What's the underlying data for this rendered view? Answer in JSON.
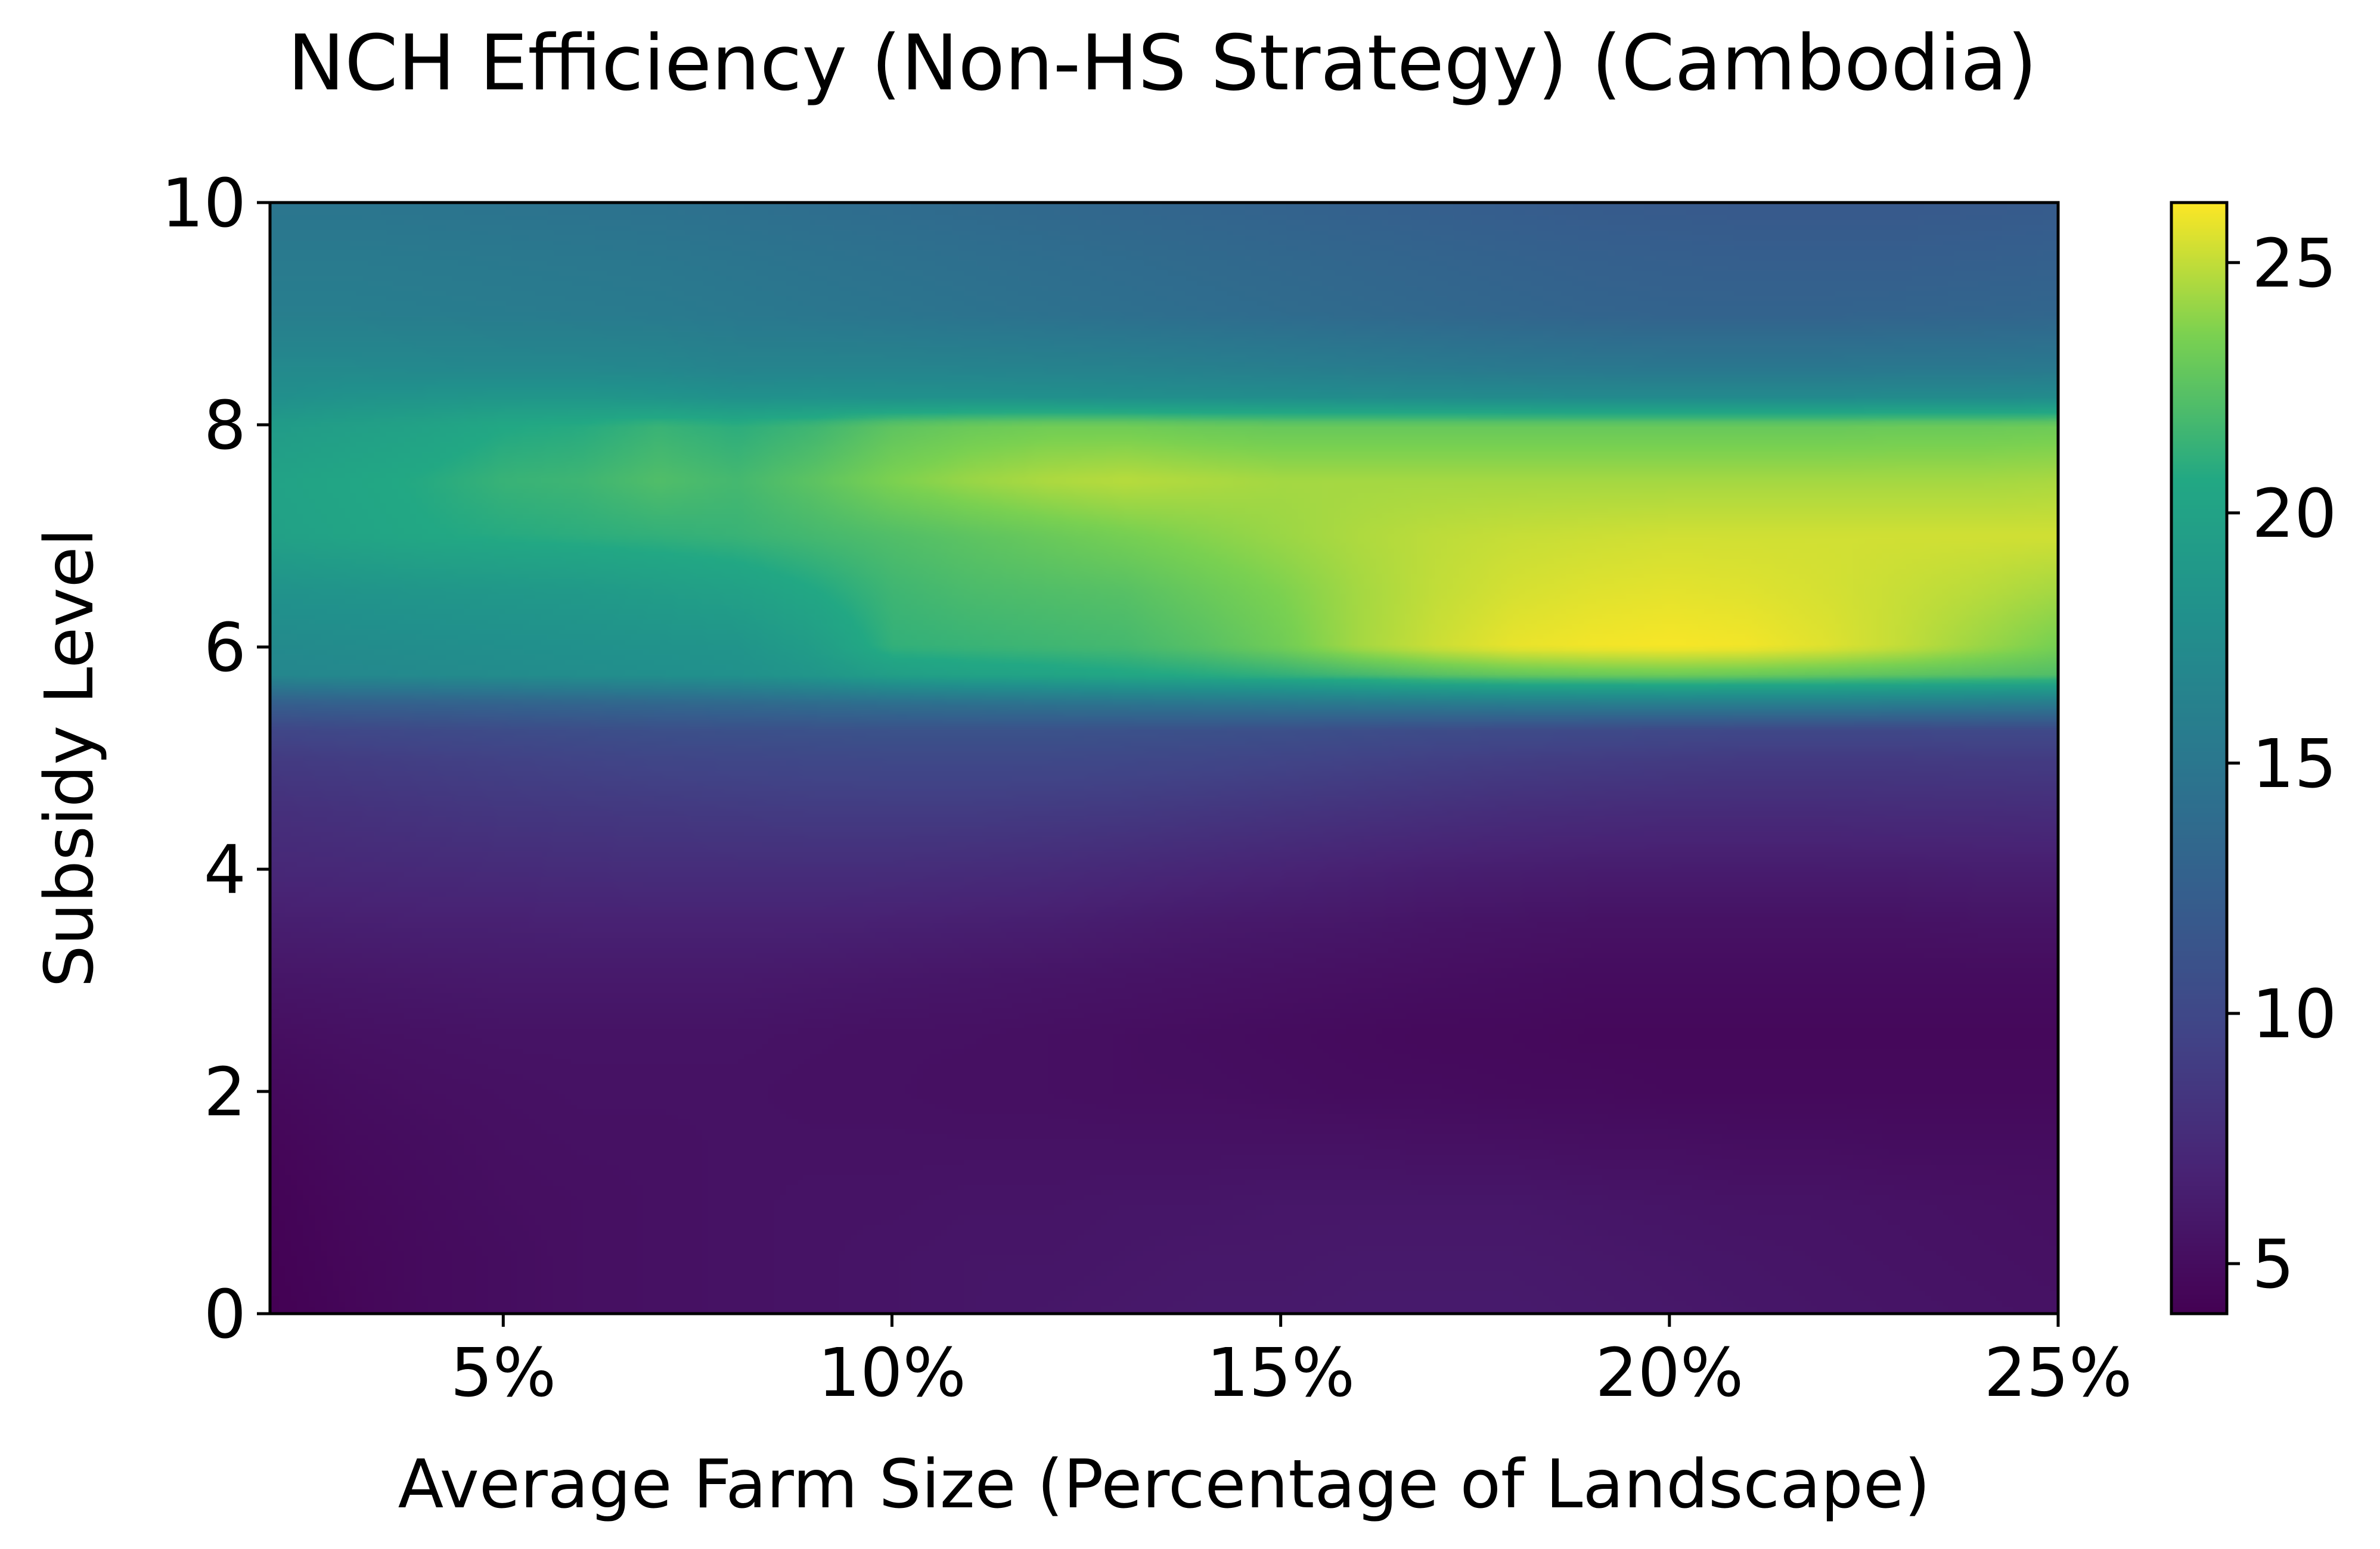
{
  "chart_data": {
    "type": "heatmap",
    "title": "NCH Efficiency (Non-HS Strategy) (Cambodia)",
    "xlabel": "Average Farm Size (Percentage of Landscape)",
    "ylabel": "Subsidy Level",
    "xlim": [
      2,
      25
    ],
    "ylim": [
      0,
      10
    ],
    "x_ticks": [
      5,
      10,
      15,
      20,
      25
    ],
    "x_tick_labels": [
      "5%",
      "10%",
      "15%",
      "20%",
      "25%"
    ],
    "y_ticks": [
      0,
      2,
      4,
      6,
      8,
      10
    ],
    "y_tick_labels": [
      "0",
      "2",
      "4",
      "6",
      "8",
      "10"
    ],
    "colormap": "viridis",
    "colorbar": {
      "range": [
        4,
        26.2
      ],
      "ticks": [
        5,
        10,
        15,
        20,
        25
      ],
      "tick_labels": [
        "5",
        "10",
        "15",
        "20",
        "25"
      ]
    },
    "grid": false,
    "x": [
      2,
      3,
      4,
      5,
      6,
      7,
      8,
      9,
      10,
      11,
      12,
      13,
      14,
      15,
      16,
      17,
      18,
      19,
      20,
      21,
      22,
      23,
      24,
      25
    ],
    "y": [
      0,
      0.5,
      1,
      1.5,
      2,
      2.5,
      3,
      3.5,
      4,
      4.5,
      5,
      5.25,
      5.5,
      5.75,
      6,
      6.5,
      7,
      7.5,
      8,
      8.25,
      8.5,
      9,
      9.5,
      10
    ],
    "z": [
      [
        4.0,
        4.4,
        4.8,
        5.0,
        5.2,
        5.3,
        5.4,
        5.5,
        5.6,
        5.7,
        5.8,
        5.9,
        6.0,
        6.0,
        6.1,
        6.1,
        6.1,
        6.0,
        5.9,
        5.8,
        5.7,
        5.6,
        5.5,
        5.4
      ],
      [
        4.1,
        4.5,
        4.8,
        5.0,
        5.2,
        5.3,
        5.4,
        5.5,
        5.6,
        5.7,
        5.7,
        5.8,
        5.9,
        5.9,
        6.0,
        6.0,
        6.0,
        5.9,
        5.8,
        5.7,
        5.6,
        5.5,
        5.4,
        5.3
      ],
      [
        4.2,
        4.6,
        4.9,
        5.1,
        5.2,
        5.3,
        5.4,
        5.5,
        5.5,
        5.6,
        5.6,
        5.7,
        5.7,
        5.8,
        5.8,
        5.8,
        5.8,
        5.7,
        5.6,
        5.5,
        5.5,
        5.4,
        5.3,
        5.2
      ],
      [
        4.4,
        4.8,
        5.0,
        5.2,
        5.3,
        5.3,
        5.4,
        5.4,
        5.4,
        5.4,
        5.4,
        5.4,
        5.4,
        5.4,
        5.4,
        5.3,
        5.3,
        5.2,
        5.2,
        5.1,
        5.1,
        5.0,
        5.0,
        5.0
      ],
      [
        4.7,
        5.0,
        5.2,
        5.3,
        5.4,
        5.4,
        5.4,
        5.3,
        5.3,
        5.2,
        5.2,
        5.1,
        5.1,
        5.0,
        4.9,
        4.9,
        4.8,
        4.8,
        4.7,
        4.7,
        4.7,
        4.7,
        4.7,
        4.7
      ],
      [
        5.1,
        5.3,
        5.4,
        5.5,
        5.5,
        5.5,
        5.5,
        5.4,
        5.3,
        5.3,
        5.2,
        5.1,
        5.0,
        4.9,
        4.8,
        4.7,
        4.7,
        4.6,
        4.6,
        4.6,
        4.6,
        4.6,
        4.6,
        4.6
      ],
      [
        5.7,
        5.8,
        5.9,
        6.0,
        6.0,
        6.0,
        6.0,
        5.9,
        5.8,
        5.7,
        5.6,
        5.5,
        5.4,
        5.3,
        5.2,
        5.1,
        5.0,
        4.9,
        4.9,
        4.9,
        4.9,
        4.9,
        4.9,
        4.9
      ],
      [
        6.4,
        6.5,
        6.6,
        6.6,
        6.7,
        6.7,
        6.7,
        6.7,
        6.6,
        6.5,
        6.4,
        6.2,
        6.0,
        5.9,
        5.8,
        5.6,
        5.5,
        5.4,
        5.4,
        5.4,
        5.4,
        5.4,
        5.5,
        5.5
      ],
      [
        7.2,
        7.3,
        7.4,
        7.5,
        7.6,
        7.7,
        7.7,
        7.7,
        7.7,
        7.6,
        7.5,
        7.3,
        7.1,
        6.9,
        6.7,
        6.5,
        6.4,
        6.3,
        6.3,
        6.3,
        6.3,
        6.3,
        6.4,
        6.4
      ],
      [
        7.8,
        8.0,
        8.2,
        8.4,
        8.5,
        8.6,
        8.7,
        8.8,
        8.8,
        8.8,
        8.7,
        8.6,
        8.4,
        8.2,
        8.0,
        7.8,
        7.6,
        7.5,
        7.4,
        7.4,
        7.4,
        7.5,
        7.5,
        7.6
      ],
      [
        8.8,
        9.0,
        9.2,
        9.4,
        9.6,
        9.8,
        9.9,
        10.0,
        10.1,
        10.1,
        10.1,
        10.0,
        9.9,
        9.7,
        9.5,
        9.3,
        9.1,
        9.0,
        8.9,
        8.8,
        8.8,
        8.8,
        8.9,
        8.9
      ],
      [
        9.8,
        10.0,
        10.2,
        10.4,
        10.6,
        10.8,
        10.9,
        11.0,
        11.1,
        11.1,
        11.1,
        11.0,
        10.9,
        10.8,
        10.6,
        10.4,
        10.3,
        10.2,
        10.1,
        10.0,
        10.0,
        10.0,
        10.1,
        10.1
      ],
      [
        12.5,
        12.7,
        12.8,
        13.0,
        13.2,
        13.4,
        13.6,
        13.9,
        14.2,
        14.4,
        14.6,
        14.8,
        15.0,
        15.2,
        15.4,
        15.6,
        15.8,
        15.9,
        16.0,
        16.0,
        16.0,
        15.9,
        15.8,
        15.7
      ],
      [
        16.8,
        17.0,
        17.2,
        17.4,
        17.6,
        17.8,
        18.0,
        18.6,
        19.6,
        20.0,
        20.2,
        20.5,
        20.8,
        21.2,
        21.8,
        22.4,
        22.8,
        23.0,
        23.1,
        23.0,
        22.8,
        22.6,
        22.4,
        22.2
      ],
      [
        17.2,
        17.4,
        17.6,
        17.8,
        18.0,
        18.2,
        18.4,
        19.4,
        21.2,
        21.4,
        21.6,
        21.8,
        22.4,
        23.2,
        24.4,
        25.2,
        25.8,
        26.0,
        26.1,
        26.0,
        25.6,
        25.0,
        24.2,
        23.4
      ],
      [
        18.2,
        18.4,
        18.6,
        18.8,
        19.0,
        19.4,
        19.8,
        20.6,
        21.6,
        22.0,
        22.2,
        22.4,
        23.0,
        23.6,
        24.4,
        25.0,
        25.4,
        25.6,
        25.7,
        25.6,
        25.4,
        25.1,
        24.8,
        24.4
      ],
      [
        19.8,
        20.2,
        20.6,
        20.8,
        21.0,
        21.2,
        21.4,
        21.8,
        22.2,
        22.6,
        23.0,
        23.4,
        23.8,
        24.2,
        24.6,
        24.9,
        25.1,
        25.2,
        25.3,
        25.3,
        25.3,
        25.3,
        25.3,
        25.3
      ],
      [
        20.0,
        20.4,
        20.8,
        21.4,
        21.6,
        22.2,
        21.8,
        22.6,
        23.6,
        24.2,
        24.6,
        24.8,
        24.6,
        24.4,
        24.4,
        24.4,
        24.4,
        24.4,
        24.4,
        24.4,
        24.4,
        24.4,
        24.4,
        24.5
      ],
      [
        19.2,
        19.6,
        20.0,
        20.6,
        20.8,
        21.4,
        21.0,
        21.6,
        22.6,
        23.0,
        23.2,
        23.2,
        23.0,
        22.9,
        22.9,
        22.9,
        22.9,
        22.9,
        22.9,
        22.9,
        22.9,
        23.0,
        23.0,
        23.1
      ],
      [
        17.8,
        18.2,
        18.4,
        18.6,
        18.6,
        18.4,
        18.0,
        18.1,
        18.0,
        18.0,
        17.9,
        17.8,
        17.7,
        17.6,
        17.5,
        17.4,
        17.3,
        17.2,
        17.2,
        17.2,
        17.2,
        17.3,
        17.3,
        17.4
      ],
      [
        17.2,
        17.2,
        17.1,
        17.0,
        17.0,
        16.9,
        16.5,
        16.6,
        16.6,
        16.5,
        16.4,
        16.3,
        16.1,
        15.9,
        15.7,
        15.5,
        15.3,
        15.2,
        15.1,
        15.1,
        15.1,
        15.2,
        15.2,
        15.3
      ],
      [
        15.8,
        15.8,
        15.7,
        15.6,
        15.5,
        15.4,
        15.2,
        15.0,
        14.8,
        14.6,
        14.4,
        14.2,
        14.0,
        13.8,
        13.6,
        13.4,
        13.2,
        13.0,
        12.9,
        12.9,
        12.9,
        13.0,
        13.1,
        13.2
      ],
      [
        15.4,
        15.4,
        15.3,
        15.2,
        15.1,
        15.0,
        14.8,
        14.6,
        14.4,
        14.2,
        14.0,
        13.8,
        13.6,
        13.4,
        13.2,
        13.0,
        12.8,
        12.6,
        12.5,
        12.4,
        12.4,
        12.4,
        12.5,
        12.6
      ],
      [
        14.8,
        14.8,
        14.7,
        14.6,
        14.5,
        14.4,
        14.2,
        14.0,
        13.8,
        13.6,
        13.4,
        13.2,
        13.0,
        12.8,
        12.6,
        12.4,
        12.2,
        12.0,
        11.9,
        11.8,
        11.8,
        11.8,
        11.9,
        12.0
      ]
    ]
  }
}
